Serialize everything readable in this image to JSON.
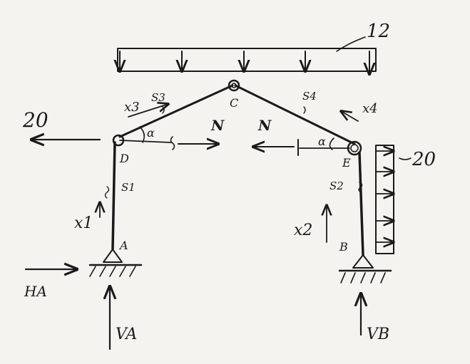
{
  "labels": {
    "top_load": "12",
    "left_force": "20",
    "right_load": "20",
    "node_c": "C",
    "node_d": "D",
    "node_e": "E",
    "node_a": "A",
    "node_b": "B",
    "s1": "S1",
    "s2": "S2",
    "s3": "S3",
    "s4": "S4",
    "x1": "x1",
    "x2": "x2",
    "x3": "x3",
    "x4": "x4",
    "n_left": "N",
    "n_right": "N",
    "alpha_left": "α",
    "alpha_right": "α",
    "ha": "HA",
    "va": "VA",
    "vb": "VB"
  },
  "colors": {
    "ink": "#1a1a1a",
    "paper": "#f4f3ef"
  }
}
